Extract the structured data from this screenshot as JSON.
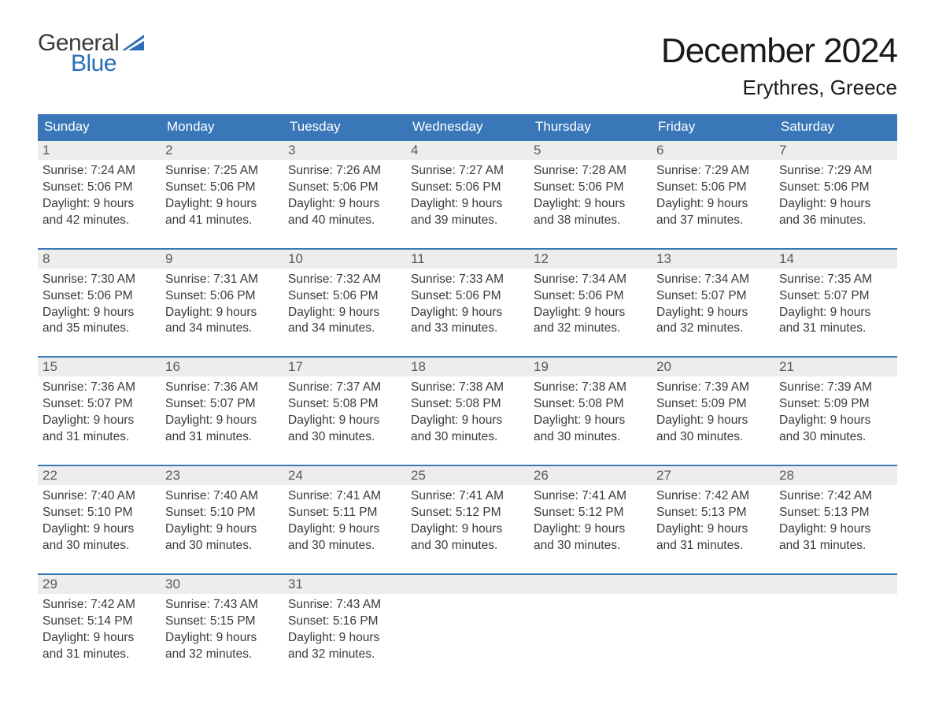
{
  "logo": {
    "word1": "General",
    "word2": "Blue",
    "flag_color": "#2a6db8",
    "text_dark": "#3a3a3a"
  },
  "title": "December 2024",
  "location": "Erythres, Greece",
  "colors": {
    "header_bg": "#3a77b8",
    "header_text": "#ffffff",
    "row_divider": "#3a77b8",
    "daynum_bg": "#ededed",
    "daynum_text": "#5a5a5a",
    "body_text": "#3a3a3a",
    "page_bg": "#ffffff"
  },
  "weekdays": [
    "Sunday",
    "Monday",
    "Tuesday",
    "Wednesday",
    "Thursday",
    "Friday",
    "Saturday"
  ],
  "weeks": [
    [
      {
        "n": "1",
        "sunrise": "7:24 AM",
        "sunset": "5:06 PM",
        "dl": "9 hours and 42 minutes."
      },
      {
        "n": "2",
        "sunrise": "7:25 AM",
        "sunset": "5:06 PM",
        "dl": "9 hours and 41 minutes."
      },
      {
        "n": "3",
        "sunrise": "7:26 AM",
        "sunset": "5:06 PM",
        "dl": "9 hours and 40 minutes."
      },
      {
        "n": "4",
        "sunrise": "7:27 AM",
        "sunset": "5:06 PM",
        "dl": "9 hours and 39 minutes."
      },
      {
        "n": "5",
        "sunrise": "7:28 AM",
        "sunset": "5:06 PM",
        "dl": "9 hours and 38 minutes."
      },
      {
        "n": "6",
        "sunrise": "7:29 AM",
        "sunset": "5:06 PM",
        "dl": "9 hours and 37 minutes."
      },
      {
        "n": "7",
        "sunrise": "7:29 AM",
        "sunset": "5:06 PM",
        "dl": "9 hours and 36 minutes."
      }
    ],
    [
      {
        "n": "8",
        "sunrise": "7:30 AM",
        "sunset": "5:06 PM",
        "dl": "9 hours and 35 minutes."
      },
      {
        "n": "9",
        "sunrise": "7:31 AM",
        "sunset": "5:06 PM",
        "dl": "9 hours and 34 minutes."
      },
      {
        "n": "10",
        "sunrise": "7:32 AM",
        "sunset": "5:06 PM",
        "dl": "9 hours and 34 minutes."
      },
      {
        "n": "11",
        "sunrise": "7:33 AM",
        "sunset": "5:06 PM",
        "dl": "9 hours and 33 minutes."
      },
      {
        "n": "12",
        "sunrise": "7:34 AM",
        "sunset": "5:06 PM",
        "dl": "9 hours and 32 minutes."
      },
      {
        "n": "13",
        "sunrise": "7:34 AM",
        "sunset": "5:07 PM",
        "dl": "9 hours and 32 minutes."
      },
      {
        "n": "14",
        "sunrise": "7:35 AM",
        "sunset": "5:07 PM",
        "dl": "9 hours and 31 minutes."
      }
    ],
    [
      {
        "n": "15",
        "sunrise": "7:36 AM",
        "sunset": "5:07 PM",
        "dl": "9 hours and 31 minutes."
      },
      {
        "n": "16",
        "sunrise": "7:36 AM",
        "sunset": "5:07 PM",
        "dl": "9 hours and 31 minutes."
      },
      {
        "n": "17",
        "sunrise": "7:37 AM",
        "sunset": "5:08 PM",
        "dl": "9 hours and 30 minutes."
      },
      {
        "n": "18",
        "sunrise": "7:38 AM",
        "sunset": "5:08 PM",
        "dl": "9 hours and 30 minutes."
      },
      {
        "n": "19",
        "sunrise": "7:38 AM",
        "sunset": "5:08 PM",
        "dl": "9 hours and 30 minutes."
      },
      {
        "n": "20",
        "sunrise": "7:39 AM",
        "sunset": "5:09 PM",
        "dl": "9 hours and 30 minutes."
      },
      {
        "n": "21",
        "sunrise": "7:39 AM",
        "sunset": "5:09 PM",
        "dl": "9 hours and 30 minutes."
      }
    ],
    [
      {
        "n": "22",
        "sunrise": "7:40 AM",
        "sunset": "5:10 PM",
        "dl": "9 hours and 30 minutes."
      },
      {
        "n": "23",
        "sunrise": "7:40 AM",
        "sunset": "5:10 PM",
        "dl": "9 hours and 30 minutes."
      },
      {
        "n": "24",
        "sunrise": "7:41 AM",
        "sunset": "5:11 PM",
        "dl": "9 hours and 30 minutes."
      },
      {
        "n": "25",
        "sunrise": "7:41 AM",
        "sunset": "5:12 PM",
        "dl": "9 hours and 30 minutes."
      },
      {
        "n": "26",
        "sunrise": "7:41 AM",
        "sunset": "5:12 PM",
        "dl": "9 hours and 30 minutes."
      },
      {
        "n": "27",
        "sunrise": "7:42 AM",
        "sunset": "5:13 PM",
        "dl": "9 hours and 31 minutes."
      },
      {
        "n": "28",
        "sunrise": "7:42 AM",
        "sunset": "5:13 PM",
        "dl": "9 hours and 31 minutes."
      }
    ],
    [
      {
        "n": "29",
        "sunrise": "7:42 AM",
        "sunset": "5:14 PM",
        "dl": "9 hours and 31 minutes."
      },
      {
        "n": "30",
        "sunrise": "7:43 AM",
        "sunset": "5:15 PM",
        "dl": "9 hours and 32 minutes."
      },
      {
        "n": "31",
        "sunrise": "7:43 AM",
        "sunset": "5:16 PM",
        "dl": "9 hours and 32 minutes."
      },
      null,
      null,
      null,
      null
    ]
  ],
  "labels": {
    "sunrise": "Sunrise:",
    "sunset": "Sunset:",
    "daylight": "Daylight:"
  }
}
